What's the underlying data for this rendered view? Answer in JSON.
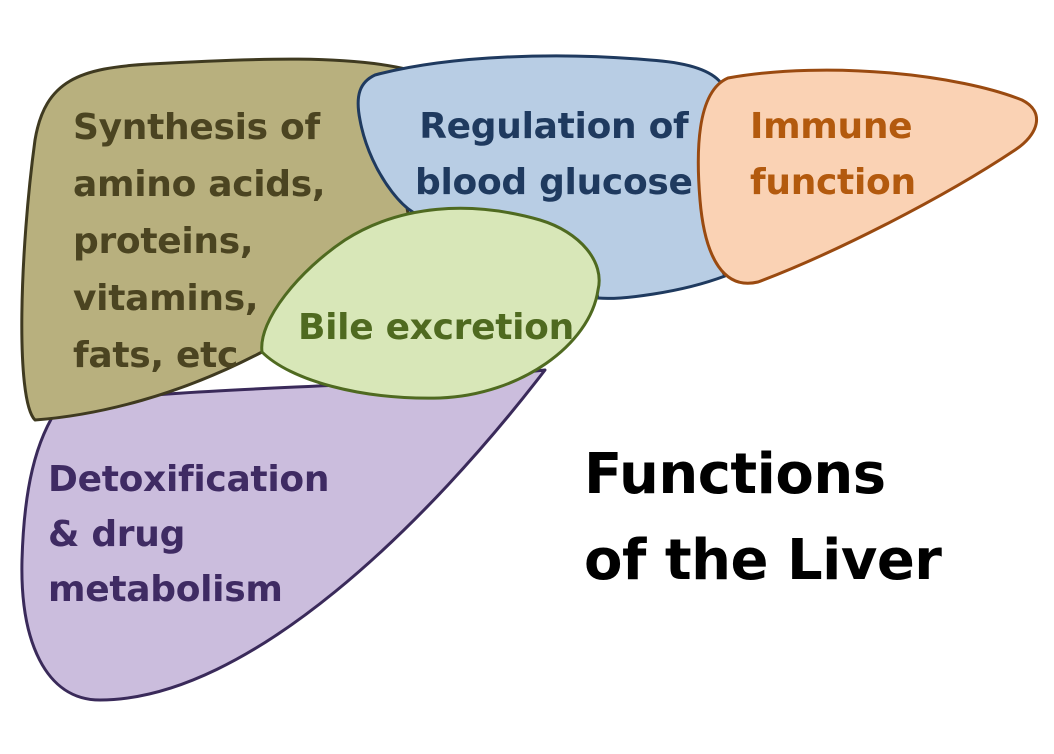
{
  "title": {
    "lines": [
      "Functions",
      "of the Liver"
    ],
    "color": "#000000"
  },
  "regions": {
    "synthesis": {
      "lines": [
        "Synthesis of",
        "amino acids,",
        "proteins,",
        "vitamins,",
        "fats, etc"
      ],
      "fill": "#b8b07e",
      "stroke": "#3f3a20",
      "text_color": "#4b4421"
    },
    "glucose": {
      "lines": [
        "Regulation of",
        "blood glucose"
      ],
      "fill": "#b8cde4",
      "stroke": "#1f3a5f",
      "text_color": "#1f3a5f"
    },
    "immune": {
      "lines": [
        "Immune",
        "function"
      ],
      "fill": "#fad2b4",
      "stroke": "#9a4a10",
      "text_color": "#b35a0e"
    },
    "bile": {
      "lines": [
        "Bile excretion"
      ],
      "fill": "#d8e7b8",
      "stroke": "#4f6a20",
      "text_color": "#4f6a20"
    },
    "detox": {
      "lines": [
        "Detoxification",
        "& drug",
        "metabolism"
      ],
      "fill": "#cbbddd",
      "stroke": "#3a2a5a",
      "text_color": "#3f2b63"
    }
  }
}
